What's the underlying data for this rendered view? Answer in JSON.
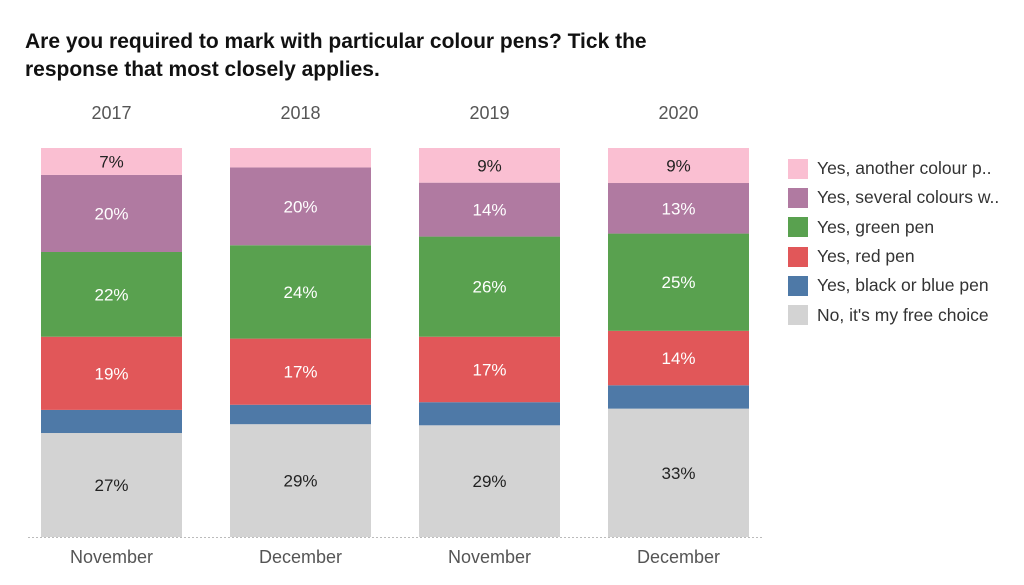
{
  "chart_data": {
    "type": "bar",
    "stacked": true,
    "title": "Are you required to mark with particular colour pens? Tick the response that most closely applies.",
    "years": [
      "2017",
      "2018",
      "2019",
      "2020"
    ],
    "categories": [
      "November",
      "December",
      "November",
      "December"
    ],
    "xlabel": "",
    "ylabel": "",
    "ylim": [
      0,
      100
    ],
    "legend_position": "right",
    "series": [
      {
        "name": "No, it's my free choice",
        "color": "#d3d3d3",
        "values": [
          27,
          29,
          29,
          33
        ],
        "labels": [
          "27%",
          "29%",
          "29%",
          "33%"
        ],
        "label_color": "#222222"
      },
      {
        "name": "Yes, black or blue pen",
        "color": "#4e79a7",
        "values": [
          6,
          5,
          6,
          6
        ],
        "labels": [
          null,
          null,
          null,
          null
        ],
        "label_color": "#ffffff"
      },
      {
        "name": "Yes, red pen",
        "color": "#e15759",
        "values": [
          19,
          17,
          17,
          14
        ],
        "labels": [
          "19%",
          "17%",
          "17%",
          "14%"
        ],
        "label_color": "#ffffff"
      },
      {
        "name": "Yes, green pen",
        "color": "#59a14f",
        "values": [
          22,
          24,
          26,
          25
        ],
        "labels": [
          "22%",
          "24%",
          "26%",
          "25%"
        ],
        "label_color": "#ffffff"
      },
      {
        "name": "Yes, several colours w..",
        "color": "#b07aa1",
        "values": [
          20,
          20,
          14,
          13
        ],
        "labels": [
          "20%",
          "20%",
          "14%",
          "13%"
        ],
        "label_color": "#ffffff"
      },
      {
        "name": "Yes, another colour p..",
        "color": "#fabfd2",
        "values": [
          7,
          5,
          9,
          9
        ],
        "labels": [
          "7%",
          null,
          "9%",
          "9%"
        ],
        "label_color": "#222222"
      }
    ]
  }
}
